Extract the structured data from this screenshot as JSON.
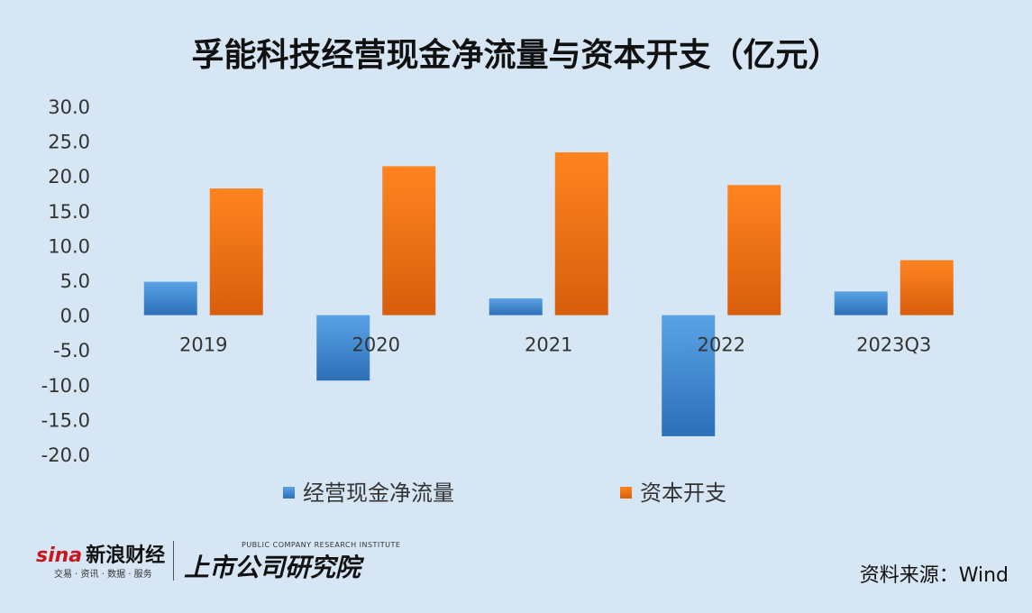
{
  "title": "孚能科技经营现金净流量与资本开支（亿元）",
  "source": "资料来源：Wind",
  "branding": {
    "sina_logo": "sina",
    "sina_name": "新浪财经",
    "sina_sub": "交易 · 资讯 · 数据 · 服务",
    "institute": "上市公司研究院",
    "institute_sub": "PUBLIC COMPANY RESEARCH INSTITUTE"
  },
  "chart_data": {
    "type": "bar",
    "title": "孚能科技经营现金净流量与资本开支（亿元）",
    "categories": [
      "2019",
      "2020",
      "2021",
      "2022",
      "2023Q3"
    ],
    "series": [
      {
        "name": "经营现金净流量",
        "values": [
          4.8,
          -9.4,
          2.4,
          -17.4,
          3.4
        ],
        "color": "#3a86d4"
      },
      {
        "name": "资本开支",
        "values": [
          18.2,
          21.4,
          23.4,
          18.7,
          7.9
        ],
        "color": "#f07d19"
      }
    ],
    "ylim": [
      -20,
      30
    ],
    "yticks": [
      "30.0",
      "25.0",
      "20.0",
      "15.0",
      "10.0",
      "5.0",
      "0.0",
      "-5.0",
      "-10.0",
      "-15.0",
      "-20.0"
    ],
    "legend": "bottom",
    "grid": false
  }
}
